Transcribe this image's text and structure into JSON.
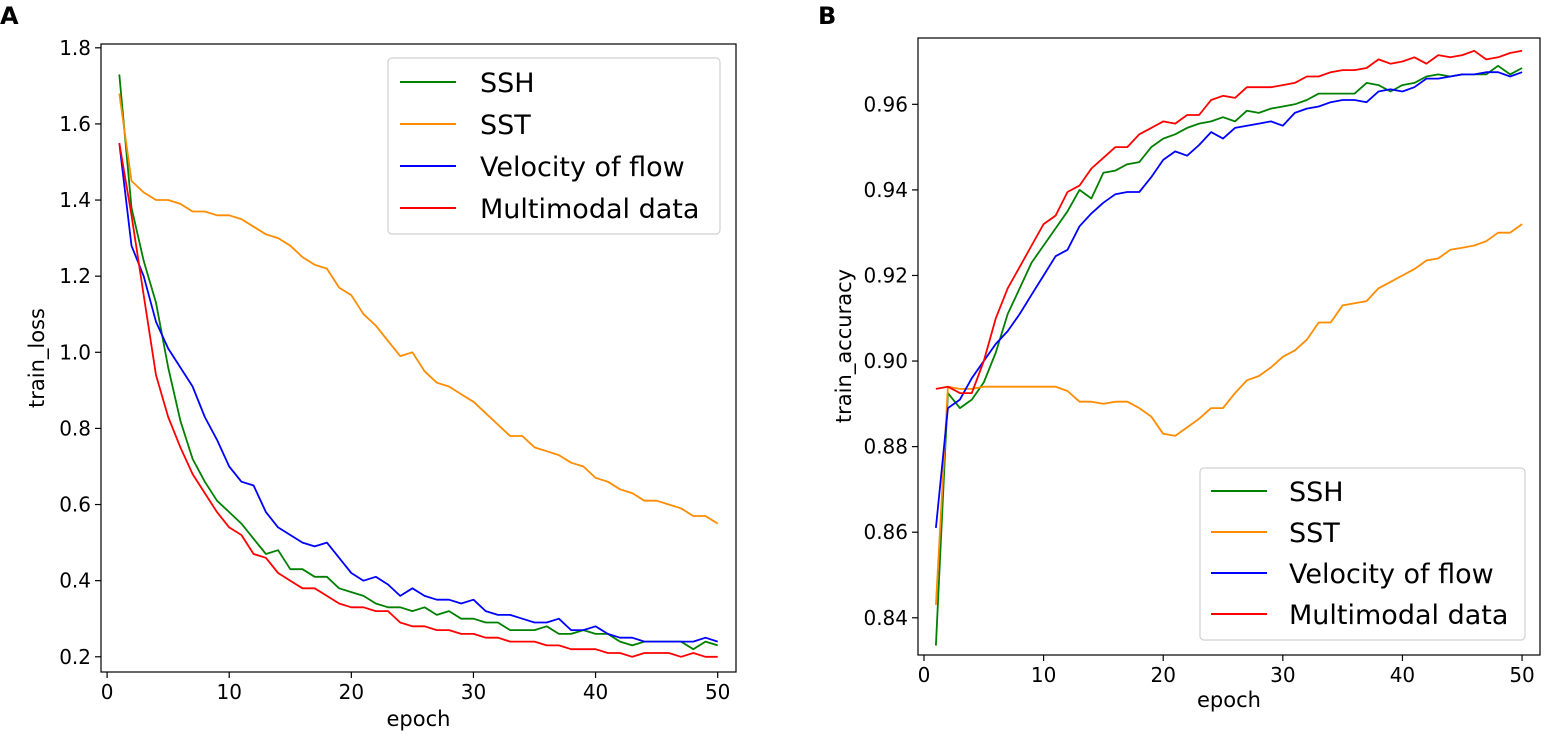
{
  "chart_data": [
    {
      "panel": "A",
      "type": "line",
      "title": "",
      "xlabel": "epoch",
      "ylabel": "train_loss",
      "xlim": [
        -0.5,
        51.5
      ],
      "ylim": [
        0.16,
        1.81
      ],
      "xticks": [
        0,
        10,
        20,
        30,
        40,
        50
      ],
      "xtick_labels": [
        "0",
        "10",
        "20",
        "30",
        "40",
        "50"
      ],
      "yticks": [
        0.2,
        0.4,
        0.6,
        0.8,
        1.0,
        1.2,
        1.4,
        1.6,
        1.8
      ],
      "ytick_labels": [
        "0.2",
        "0.4",
        "0.6",
        "0.8",
        "1.0",
        "1.2",
        "1.4",
        "1.6",
        "1.8"
      ],
      "legend_position": "top-right",
      "x": [
        1,
        2,
        3,
        4,
        5,
        6,
        7,
        8,
        9,
        10,
        11,
        12,
        13,
        14,
        15,
        16,
        17,
        18,
        19,
        20,
        21,
        22,
        23,
        24,
        25,
        26,
        27,
        28,
        29,
        30,
        31,
        32,
        33,
        34,
        35,
        36,
        37,
        38,
        39,
        40,
        41,
        42,
        43,
        44,
        45,
        46,
        47,
        48,
        49,
        50
      ],
      "series": [
        {
          "name": "SSH",
          "color": "#008000",
          "values": [
            1.73,
            1.38,
            1.24,
            1.13,
            0.96,
            0.82,
            0.72,
            0.66,
            0.61,
            0.58,
            0.55,
            0.51,
            0.47,
            0.48,
            0.43,
            0.43,
            0.41,
            0.41,
            0.38,
            0.37,
            0.36,
            0.34,
            0.33,
            0.33,
            0.32,
            0.33,
            0.31,
            0.32,
            0.3,
            0.3,
            0.29,
            0.29,
            0.27,
            0.27,
            0.27,
            0.28,
            0.26,
            0.26,
            0.27,
            0.26,
            0.26,
            0.24,
            0.23,
            0.24,
            0.24,
            0.24,
            0.24,
            0.22,
            0.24,
            0.23
          ]
        },
        {
          "name": "SST",
          "color": "#ff8c00",
          "values": [
            1.68,
            1.45,
            1.42,
            1.4,
            1.4,
            1.39,
            1.37,
            1.37,
            1.36,
            1.36,
            1.35,
            1.33,
            1.31,
            1.3,
            1.28,
            1.25,
            1.23,
            1.22,
            1.17,
            1.15,
            1.1,
            1.07,
            1.03,
            0.99,
            1.0,
            0.95,
            0.92,
            0.91,
            0.89,
            0.87,
            0.84,
            0.81,
            0.78,
            0.78,
            0.75,
            0.74,
            0.73,
            0.71,
            0.7,
            0.67,
            0.66,
            0.64,
            0.63,
            0.61,
            0.61,
            0.6,
            0.59,
            0.57,
            0.57,
            0.55
          ]
        },
        {
          "name": "Velocity of flow",
          "color": "#0000ff",
          "values": [
            1.55,
            1.28,
            1.2,
            1.08,
            1.01,
            0.96,
            0.91,
            0.83,
            0.77,
            0.7,
            0.66,
            0.65,
            0.58,
            0.54,
            0.52,
            0.5,
            0.49,
            0.5,
            0.46,
            0.42,
            0.4,
            0.41,
            0.39,
            0.36,
            0.38,
            0.36,
            0.35,
            0.35,
            0.34,
            0.35,
            0.32,
            0.31,
            0.31,
            0.3,
            0.29,
            0.29,
            0.3,
            0.27,
            0.27,
            0.28,
            0.26,
            0.25,
            0.25,
            0.24,
            0.24,
            0.24,
            0.24,
            0.24,
            0.25,
            0.24
          ]
        },
        {
          "name": "Multimodal data",
          "color": "#ff0000",
          "values": [
            1.55,
            1.36,
            1.15,
            0.94,
            0.83,
            0.75,
            0.68,
            0.63,
            0.58,
            0.54,
            0.52,
            0.47,
            0.46,
            0.42,
            0.4,
            0.38,
            0.38,
            0.36,
            0.34,
            0.33,
            0.33,
            0.32,
            0.32,
            0.29,
            0.28,
            0.28,
            0.27,
            0.27,
            0.26,
            0.26,
            0.25,
            0.25,
            0.24,
            0.24,
            0.24,
            0.23,
            0.23,
            0.22,
            0.22,
            0.22,
            0.21,
            0.21,
            0.2,
            0.21,
            0.21,
            0.21,
            0.2,
            0.21,
            0.2,
            0.2
          ]
        }
      ]
    },
    {
      "panel": "B",
      "type": "line",
      "title": "",
      "xlabel": "epoch",
      "ylabel": "train_accuracy",
      "xlim": [
        -0.5,
        51.5
      ],
      "ylim": [
        0.8313,
        0.9755
      ],
      "xticks": [
        0,
        10,
        20,
        30,
        40,
        50
      ],
      "xtick_labels": [
        "0",
        "10",
        "20",
        "30",
        "40",
        "50"
      ],
      "yticks": [
        0.84,
        0.86,
        0.88,
        0.9,
        0.92,
        0.94,
        0.96
      ],
      "ytick_labels": [
        "0.84",
        "0.86",
        "0.88",
        "0.90",
        "0.92",
        "0.94",
        "0.96"
      ],
      "legend_position": "bottom-right",
      "x": [
        1,
        2,
        3,
        4,
        5,
        6,
        7,
        8,
        9,
        10,
        11,
        12,
        13,
        14,
        15,
        16,
        17,
        18,
        19,
        20,
        21,
        22,
        23,
        24,
        25,
        26,
        27,
        28,
        29,
        30,
        31,
        32,
        33,
        34,
        35,
        36,
        37,
        38,
        39,
        40,
        41,
        42,
        43,
        44,
        45,
        46,
        47,
        48,
        49,
        50
      ],
      "series": [
        {
          "name": "SSH",
          "color": "#008000",
          "values": [
            0.8335,
            0.8925,
            0.889,
            0.891,
            0.895,
            0.902,
            0.911,
            0.917,
            0.923,
            0.927,
            0.931,
            0.935,
            0.94,
            0.938,
            0.944,
            0.9445,
            0.946,
            0.9465,
            0.95,
            0.952,
            0.953,
            0.9545,
            0.9555,
            0.956,
            0.957,
            0.956,
            0.9585,
            0.958,
            0.959,
            0.9595,
            0.96,
            0.961,
            0.9625,
            0.9625,
            0.9625,
            0.9625,
            0.965,
            0.9645,
            0.963,
            0.9645,
            0.965,
            0.9665,
            0.967,
            0.9665,
            0.967,
            0.967,
            0.967,
            0.969,
            0.967,
            0.9685
          ]
        },
        {
          "name": "SST",
          "color": "#ff8c00",
          "values": [
            0.843,
            0.894,
            0.8935,
            0.8935,
            0.894,
            0.894,
            0.894,
            0.894,
            0.894,
            0.894,
            0.894,
            0.893,
            0.8905,
            0.8905,
            0.89,
            0.8905,
            0.8905,
            0.889,
            0.887,
            0.883,
            0.8825,
            0.8845,
            0.8865,
            0.889,
            0.889,
            0.8925,
            0.8955,
            0.8965,
            0.8985,
            0.901,
            0.9025,
            0.905,
            0.909,
            0.909,
            0.913,
            0.9135,
            0.914,
            0.917,
            0.9185,
            0.92,
            0.9215,
            0.9235,
            0.924,
            0.926,
            0.9265,
            0.927,
            0.928,
            0.93,
            0.93,
            0.932
          ]
        },
        {
          "name": "Velocity of flow",
          "color": "#0000ff",
          "values": [
            0.861,
            0.889,
            0.891,
            0.896,
            0.9,
            0.904,
            0.907,
            0.911,
            0.9155,
            0.92,
            0.9245,
            0.926,
            0.9315,
            0.9345,
            0.937,
            0.939,
            0.9395,
            0.9395,
            0.943,
            0.947,
            0.949,
            0.948,
            0.9505,
            0.9535,
            0.952,
            0.9545,
            0.955,
            0.9555,
            0.956,
            0.955,
            0.958,
            0.959,
            0.9595,
            0.9605,
            0.961,
            0.961,
            0.9605,
            0.963,
            0.9635,
            0.963,
            0.964,
            0.966,
            0.966,
            0.9665,
            0.967,
            0.967,
            0.9675,
            0.9675,
            0.9665,
            0.9675
          ]
        },
        {
          "name": "Multimodal data",
          "color": "#ff0000",
          "values": [
            0.8935,
            0.894,
            0.8925,
            0.8925,
            0.9,
            0.91,
            0.917,
            0.922,
            0.927,
            0.932,
            0.934,
            0.9395,
            0.941,
            0.945,
            0.9475,
            0.95,
            0.95,
            0.953,
            0.9545,
            0.956,
            0.9555,
            0.9575,
            0.9575,
            0.961,
            0.962,
            0.9615,
            0.964,
            0.964,
            0.964,
            0.9645,
            0.965,
            0.9665,
            0.9665,
            0.9675,
            0.968,
            0.968,
            0.9685,
            0.9705,
            0.9695,
            0.97,
            0.971,
            0.9695,
            0.9715,
            0.971,
            0.9715,
            0.9725,
            0.9705,
            0.971,
            0.972,
            0.9725
          ]
        }
      ]
    }
  ]
}
